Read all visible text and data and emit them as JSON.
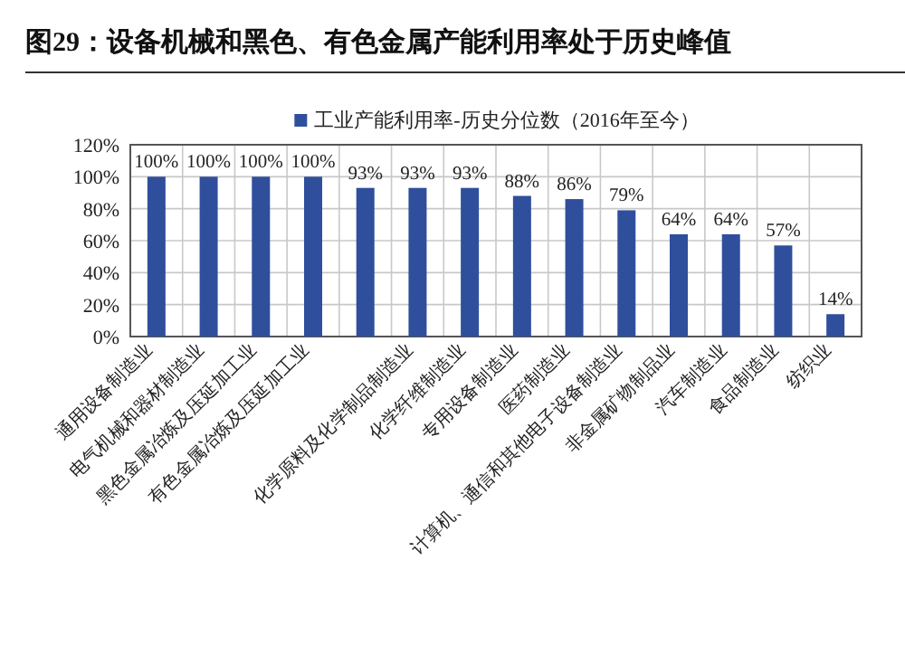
{
  "chart_data": {
    "type": "bar",
    "title": "图29：设备机械和黑色、有色金属产能利用率处于历史峰值",
    "categories": [
      "通用设备制造业",
      "电气机械和器材制造业",
      "黑色金属冶炼及压延加工业",
      "有色金属冶炼及压延加工业",
      null,
      "化学原料及化学制品制造业",
      "化学纤维制造业",
      "专用设备制造业",
      "医药制造业",
      "计算机、通信和其他电子设备制造业",
      "非金属矿物制品业",
      "汽车制造业",
      "食品制造业",
      "纺织业"
    ],
    "series": [
      {
        "name": "工业产能利用率-历史分位数（2016年至今）",
        "color": "#2f4f9c",
        "values": [
          100,
          100,
          100,
          100,
          93,
          93,
          93,
          88,
          86,
          79,
          64,
          64,
          57,
          14
        ],
        "value_labels": [
          "100%",
          "100%",
          "100%",
          "100%",
          "93%",
          "93%",
          "93%",
          "88%",
          "86%",
          "79%",
          "64%",
          "64%",
          "57%",
          "14%"
        ]
      }
    ],
    "ylim": [
      0,
      120
    ],
    "yticks": [
      {
        "value": 0,
        "label": "0%"
      },
      {
        "value": 20,
        "label": "20%"
      },
      {
        "value": 40,
        "label": "40%"
      },
      {
        "value": 60,
        "label": "60%"
      },
      {
        "value": 80,
        "label": "80%"
      },
      {
        "value": 100,
        "label": "100%"
      },
      {
        "value": 120,
        "label": "120%"
      }
    ],
    "grid": true,
    "legend": "top"
  }
}
